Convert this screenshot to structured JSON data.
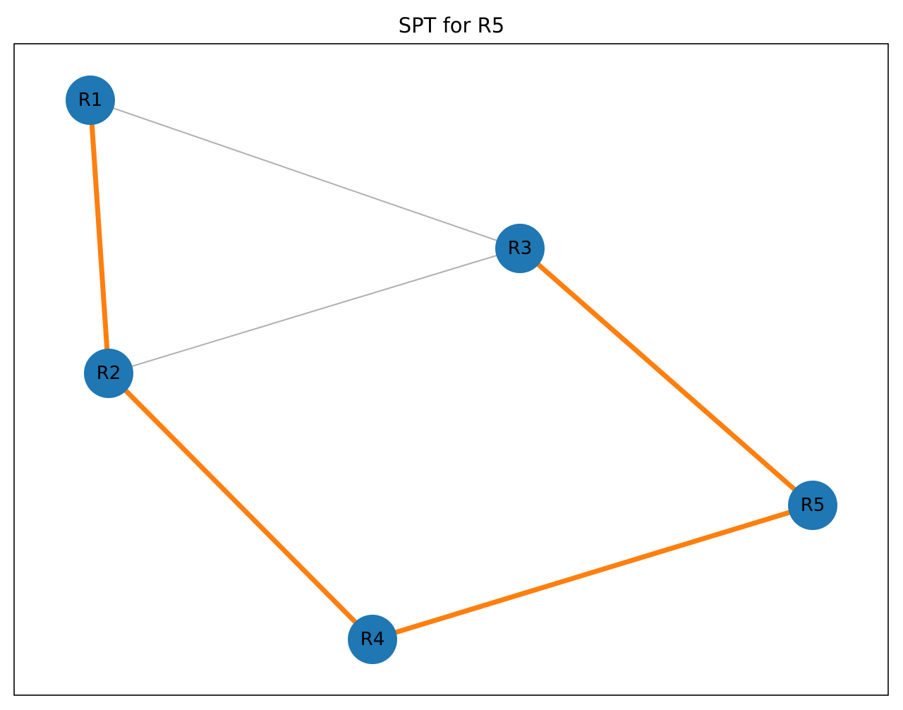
{
  "title": "SPT for R5",
  "colors": {
    "node": "#1f77b4",
    "spt_edge": "#ff7f0e",
    "other_edge": "#b0b0b0",
    "frame": "#000000",
    "background": "#ffffff"
  },
  "nodes": [
    {
      "id": "R1",
      "label": "R1"
    },
    {
      "id": "R2",
      "label": "R2"
    },
    {
      "id": "R3",
      "label": "R3"
    },
    {
      "id": "R4",
      "label": "R4"
    },
    {
      "id": "R5",
      "label": "R5"
    }
  ],
  "edges": [
    {
      "source": "R1",
      "target": "R3",
      "in_spt": false
    },
    {
      "source": "R2",
      "target": "R3",
      "in_spt": false
    },
    {
      "source": "R1",
      "target": "R2",
      "in_spt": true
    },
    {
      "source": "R3",
      "target": "R5",
      "in_spt": true
    },
    {
      "source": "R2",
      "target": "R4",
      "in_spt": true
    },
    {
      "source": "R4",
      "target": "R5",
      "in_spt": true
    }
  ]
}
